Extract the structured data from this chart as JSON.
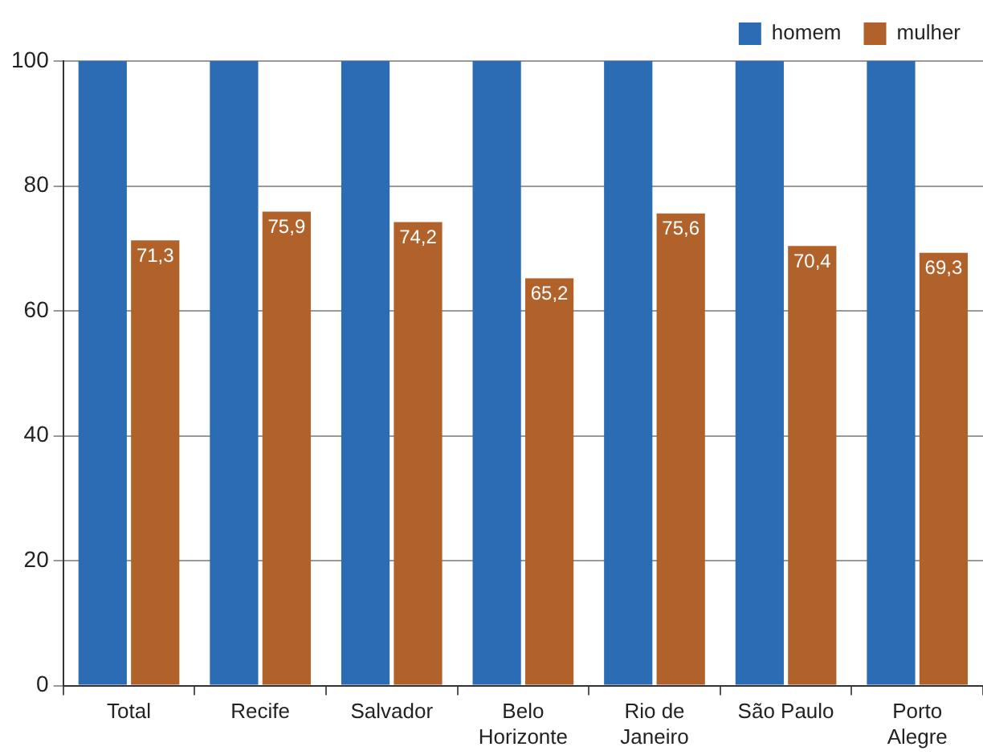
{
  "chart_data": {
    "type": "bar",
    "categories": [
      "Total",
      "Recife",
      "Salvador",
      "Belo Horizonte",
      "Rio de Janeiro",
      "São Paulo",
      "Porto Alegre"
    ],
    "series": [
      {
        "name": "homem",
        "color": "#2b6cb5",
        "values": [
          100,
          100,
          100,
          100,
          100,
          100,
          100
        ]
      },
      {
        "name": "mulher",
        "color": "#b0622a",
        "values": [
          71.3,
          75.9,
          74.2,
          65.2,
          75.6,
          70.4,
          69.3
        ],
        "value_labels": [
          "71,3",
          "75,9",
          "74,2",
          "65,2",
          "75,6",
          "70,4",
          "69,3"
        ]
      }
    ],
    "ylim": [
      0,
      100
    ],
    "yticks": [
      0,
      20,
      40,
      60,
      80,
      100
    ],
    "grid": "y",
    "legend": "top right"
  }
}
